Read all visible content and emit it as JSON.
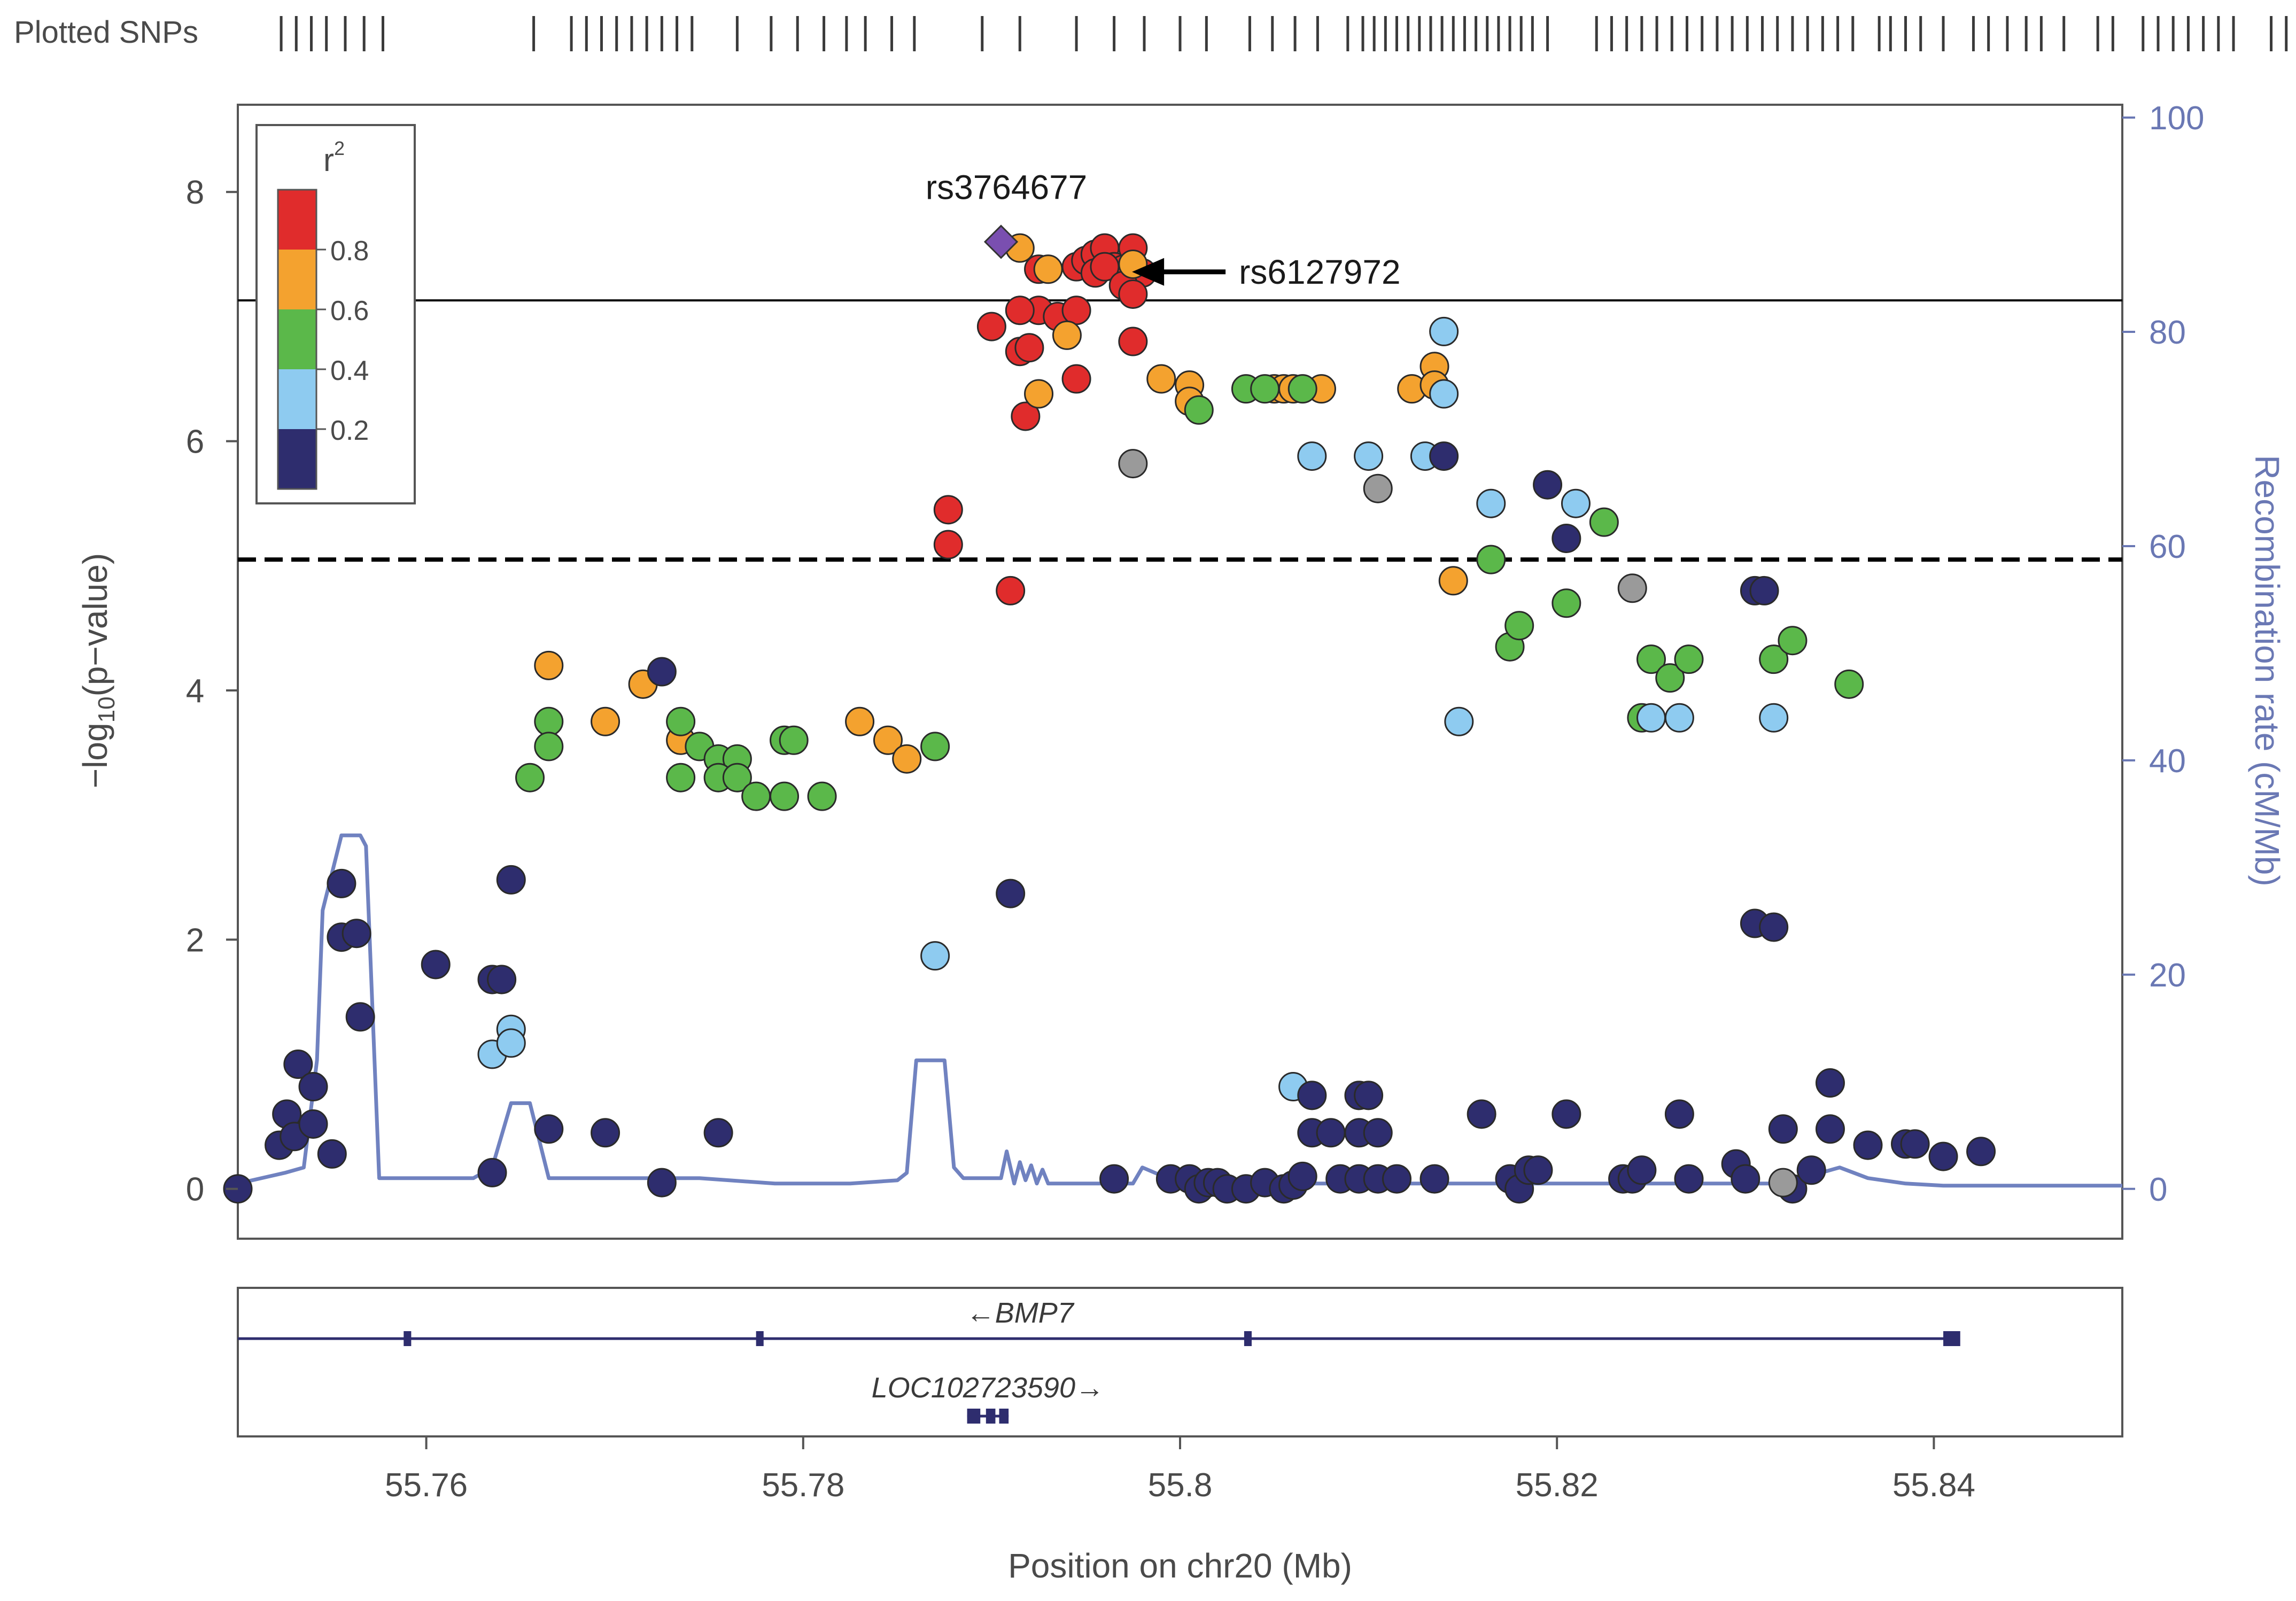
{
  "chart_data": {
    "type": "scatter",
    "title": "",
    "plotted_snps_label": "Plotted SNPs",
    "xlabel": "Position on chr20 (Mb)",
    "ylabel": "-log10(p-value)",
    "ylabel_parts": {
      "pre": "−log",
      "sub": "10",
      "post": "(p−value)"
    },
    "y2label": "Recombination rate (cM/Mb)",
    "xlim": [
      55.75,
      55.85
    ],
    "ylim": [
      -0.4,
      8.7
    ],
    "y2lim": [
      -4.65,
      101.2
    ],
    "x_ticks": [
      55.76,
      55.78,
      55.8,
      55.82,
      55.84
    ],
    "x_tick_labels": [
      "55.76",
      "55.78",
      "55.8",
      "55.82",
      "55.84"
    ],
    "y_ticks": [
      0,
      2,
      4,
      6,
      8
    ],
    "y_tick_labels": [
      "0",
      "2",
      "4",
      "6",
      "8"
    ],
    "y2_ticks": [
      0,
      20,
      40,
      60,
      80,
      100
    ],
    "y2_tick_labels": [
      "0",
      "20",
      "40",
      "60",
      "80",
      "100"
    ],
    "genome_wide_line": 7.13,
    "suggestive_line": 5.05,
    "legend": {
      "title": "r2",
      "bins": [
        {
          "label": "",
          "color": "#2e2d6e"
        },
        {
          "label": "0.2",
          "color": "#8ecbf0"
        },
        {
          "label": "0.4",
          "color": "#5bb84a"
        },
        {
          "label": "0.6",
          "color": "#f4a22f"
        },
        {
          "label": "0.8",
          "color": "#e02c2c"
        }
      ]
    },
    "colors": {
      "r08": "#e02c2c",
      "r06": "#f4a22f",
      "r04": "#5bb84a",
      "r02": "#8ecbf0",
      "r00": "#2e2d6e",
      "na": "#9a9a9a",
      "lead": "#7a4fb0",
      "recomb": "#7082c0",
      "gene": "#2e2d6e"
    },
    "annotations": [
      {
        "label": "rs3764677",
        "x": 55.7905,
        "y": 7.6,
        "type": "lead"
      },
      {
        "label": "rs6127972",
        "x": 55.7966,
        "y": 7.38,
        "type": "arrow"
      }
    ],
    "snp_ticks": [
      55.7523,
      55.7531,
      55.7539,
      55.7547,
      55.7557,
      55.7567,
      55.7577,
      55.7657,
      55.7677,
      55.7685,
      55.7693,
      55.7701,
      55.7709,
      55.7717,
      55.7725,
      55.7733,
      55.7741,
      55.7765,
      55.7783,
      55.7797,
      55.7811,
      55.7823,
      55.7833,
      55.7847,
      55.7859,
      55.7895,
      55.7915,
      55.7945,
      55.7965,
      55.7981,
      55.8,
      55.8014,
      55.8037,
      55.8049,
      55.8061,
      55.8073,
      55.8089,
      55.8097,
      55.8103,
      55.8109,
      55.8115,
      55.8121,
      55.8127,
      55.8133,
      55.8139,
      55.8145,
      55.8151,
      55.8157,
      55.8163,
      55.8169,
      55.8175,
      55.8181,
      55.8187,
      55.8195,
      55.8221,
      55.8229,
      55.8237,
      55.8245,
      55.8253,
      55.8261,
      55.8269,
      55.8277,
      55.8285,
      55.8293,
      55.8301,
      55.8309,
      55.8317,
      55.8325,
      55.8333,
      55.8341,
      55.8349,
      55.8357,
      55.8371,
      55.8377,
      55.8385,
      55.8393,
      55.8405,
      55.8421,
      55.8429,
      55.8439,
      55.8449,
      55.8457,
      55.8469,
      55.8487,
      55.8495,
      55.8511,
      55.8519,
      55.8527,
      55.8535,
      55.8543,
      55.8551,
      55.8559,
      55.8579,
      55.8587,
      55.8595,
      55.8603,
      55.8615,
      55.8635,
      55.8669,
      55.8681,
      55.8693,
      55.8707
    ],
    "recombination": {
      "x": [
        55.75,
        55.7525,
        55.7535,
        55.7542,
        55.7545,
        55.7555,
        55.7565,
        55.7568,
        55.7575,
        55.7605,
        55.7625,
        55.763,
        55.7635,
        55.7645,
        55.765,
        55.7655,
        55.7665,
        55.7705,
        55.7745,
        55.7785,
        55.7825,
        55.785,
        55.7855,
        55.786,
        55.7875,
        55.788,
        55.7885,
        55.7905,
        55.7908,
        55.7912,
        55.7915,
        55.7918,
        55.7921,
        55.7924,
        55.7927,
        55.793,
        55.7945,
        55.7975,
        55.798,
        55.8,
        55.8025,
        55.8045,
        55.8065,
        55.8085,
        55.8105,
        55.8125,
        55.8145,
        55.8165,
        55.8185,
        55.8205,
        55.8225,
        55.8245,
        55.8265,
        55.8285,
        55.8305,
        55.8325,
        55.834,
        55.835,
        55.8365,
        55.8385,
        55.8405,
        55.8425,
        55.8445,
        55.8465,
        55.8485,
        55.85
      ],
      "y": [
        0.5,
        1.5,
        2.0,
        12.0,
        26.0,
        33.0,
        33.0,
        32.0,
        1.0,
        1.0,
        1.0,
        1.5,
        2.0,
        8.0,
        8.0,
        8.0,
        1.0,
        1.0,
        1.0,
        0.5,
        0.5,
        0.8,
        1.5,
        12.0,
        12.0,
        2.0,
        1.0,
        1.0,
        3.5,
        0.5,
        2.5,
        0.8,
        2.2,
        0.5,
        1.8,
        0.5,
        0.5,
        0.5,
        2.0,
        0.5,
        0.5,
        0.5,
        0.5,
        0.5,
        0.5,
        0.5,
        0.5,
        0.5,
        0.5,
        0.5,
        0.5,
        0.5,
        0.5,
        0.5,
        0.5,
        0.5,
        1.5,
        2.0,
        1.0,
        0.5,
        0.3,
        0.3,
        0.3,
        0.3,
        0.3,
        0.3
      ]
    },
    "genes": [
      {
        "name": "BMP7",
        "label": "←BMP7",
        "start": 55.75,
        "end": 55.8412,
        "strand": "-",
        "row": 0,
        "exons": [
          [
            55.7588,
            55.7592
          ],
          [
            55.7775,
            55.7779
          ],
          [
            55.8034,
            55.8038
          ],
          [
            55.8405,
            55.8414
          ]
        ]
      },
      {
        "name": "LOC102723590",
        "label": "LOC102723590→",
        "start": 55.7887,
        "end": 55.7909,
        "strand": "+",
        "row": 1,
        "exons": [
          [
            55.7887,
            55.7894
          ],
          [
            55.7897,
            55.7902
          ],
          [
            55.7904,
            55.7909
          ]
        ]
      }
    ],
    "series": [
      {
        "name": "r2 0.8-1.0",
        "color": "#e02c2c",
        "points": [
          [
            55.7945,
            7.4
          ],
          [
            55.795,
            7.45
          ],
          [
            55.7955,
            7.5
          ],
          [
            55.796,
            7.55
          ],
          [
            55.7965,
            7.4
          ],
          [
            55.797,
            7.38
          ],
          [
            55.7975,
            7.55
          ],
          [
            55.798,
            7.35
          ],
          [
            55.7925,
            7.38
          ],
          [
            55.7955,
            7.35
          ],
          [
            55.796,
            7.4
          ],
          [
            55.797,
            7.25
          ],
          [
            55.7975,
            7.18
          ],
          [
            55.7915,
            6.72
          ],
          [
            55.792,
            6.75
          ],
          [
            55.7925,
            7.05
          ],
          [
            55.7935,
            7.0
          ],
          [
            55.7945,
            7.05
          ],
          [
            55.79,
            6.92
          ],
          [
            55.7915,
            7.05
          ],
          [
            55.7945,
            6.5
          ],
          [
            55.7975,
            6.8
          ],
          [
            55.7918,
            6.2
          ],
          [
            55.7877,
            5.45
          ],
          [
            55.7877,
            5.17
          ],
          [
            55.791,
            4.8
          ]
        ]
      },
      {
        "name": "r2 0.6-0.8",
        "color": "#f4a22f",
        "points": [
          [
            55.7915,
            7.55
          ],
          [
            55.793,
            7.38
          ],
          [
            55.794,
            6.85
          ],
          [
            55.7975,
            7.42
          ],
          [
            55.7925,
            6.38
          ],
          [
            55.799,
            6.5
          ],
          [
            55.8005,
            6.45
          ],
          [
            55.8005,
            6.32
          ],
          [
            55.805,
            6.42
          ],
          [
            55.8055,
            6.42
          ],
          [
            55.806,
            6.42
          ],
          [
            55.8075,
            6.42
          ],
          [
            55.8123,
            6.42
          ],
          [
            55.8135,
            6.6
          ],
          [
            55.8135,
            6.45
          ],
          [
            55.8145,
            4.88
          ],
          [
            55.7665,
            4.2
          ],
          [
            55.7695,
            3.75
          ],
          [
            55.7715,
            4.05
          ],
          [
            55.7735,
            3.6
          ],
          [
            55.783,
            3.75
          ],
          [
            55.7845,
            3.6
          ],
          [
            55.7855,
            3.45
          ]
        ]
      },
      {
        "name": "r2 0.4-0.6",
        "color": "#5bb84a",
        "points": [
          [
            55.7665,
            3.75
          ],
          [
            55.7665,
            3.55
          ],
          [
            55.7655,
            3.3
          ],
          [
            55.7735,
            3.75
          ],
          [
            55.7745,
            3.55
          ],
          [
            55.7755,
            3.45
          ],
          [
            55.7765,
            3.45
          ],
          [
            55.7735,
            3.3
          ],
          [
            55.7755,
            3.3
          ],
          [
            55.7765,
            3.3
          ],
          [
            55.7775,
            3.15
          ],
          [
            55.779,
            3.6
          ],
          [
            55.7795,
            3.6
          ],
          [
            55.779,
            3.15
          ],
          [
            55.781,
            3.15
          ],
          [
            55.787,
            3.55
          ],
          [
            55.8035,
            6.42
          ],
          [
            55.8045,
            6.42
          ],
          [
            55.8065,
            6.42
          ],
          [
            55.801,
            6.25
          ],
          [
            55.8165,
            5.05
          ],
          [
            55.8175,
            4.35
          ],
          [
            55.818,
            4.52
          ],
          [
            55.8205,
            4.7
          ],
          [
            55.8225,
            5.35
          ],
          [
            55.8245,
            3.78
          ],
          [
            55.825,
            4.25
          ],
          [
            55.826,
            4.1
          ],
          [
            55.827,
            4.25
          ],
          [
            55.8315,
            4.25
          ],
          [
            55.8325,
            4.4
          ],
          [
            55.8355,
            4.05
          ]
        ]
      },
      {
        "name": "r2 0.2-0.4",
        "color": "#8ecbf0",
        "points": [
          [
            55.814,
            6.88
          ],
          [
            55.807,
            5.88
          ],
          [
            55.81,
            5.88
          ],
          [
            55.813,
            5.88
          ],
          [
            55.814,
            6.38
          ],
          [
            55.8165,
            5.5
          ],
          [
            55.821,
            5.5
          ],
          [
            55.8148,
            3.75
          ],
          [
            55.8265,
            3.78
          ],
          [
            55.825,
            3.78
          ],
          [
            55.8315,
            3.78
          ],
          [
            55.787,
            1.87
          ],
          [
            55.7645,
            1.28
          ],
          [
            55.7635,
            1.08
          ],
          [
            55.7645,
            1.17
          ],
          [
            55.806,
            0.82
          ]
        ]
      },
      {
        "name": "r2 0.0-0.2",
        "color": "#2e2d6e",
        "points": [
          [
            55.7725,
            4.15
          ],
          [
            55.7555,
            2.45
          ],
          [
            55.7555,
            2.02
          ],
          [
            55.7565,
            1.38
          ],
          [
            55.7605,
            1.8
          ],
          [
            55.7635,
            1.68
          ],
          [
            55.7645,
            2.48
          ],
          [
            55.764,
            1.68
          ],
          [
            55.791,
            2.37
          ],
          [
            55.814,
            5.88
          ],
          [
            55.8195,
            5.65
          ],
          [
            55.8205,
            5.22
          ],
          [
            55.8305,
            4.8
          ],
          [
            55.831,
            4.8
          ],
          [
            55.8305,
            2.13
          ],
          [
            55.8315,
            2.1
          ],
          [
            55.75,
            0.0
          ],
          [
            55.7522,
            0.35
          ],
          [
            55.7526,
            0.6
          ],
          [
            55.753,
            0.42
          ],
          [
            55.7532,
            1.0
          ],
          [
            55.754,
            0.82
          ],
          [
            55.754,
            0.52
          ],
          [
            55.755,
            0.28
          ],
          [
            55.7635,
            0.13
          ],
          [
            55.7665,
            0.48
          ],
          [
            55.7695,
            0.45
          ],
          [
            55.7725,
            0.05
          ],
          [
            55.7755,
            0.45
          ],
          [
            55.7965,
            0.08
          ],
          [
            55.7995,
            0.08
          ],
          [
            55.8005,
            0.08
          ],
          [
            55.801,
            0.0
          ],
          [
            55.8015,
            0.05
          ],
          [
            55.802,
            0.05
          ],
          [
            55.8025,
            0.0
          ],
          [
            55.8035,
            0.0
          ],
          [
            55.8045,
            0.05
          ],
          [
            55.8055,
            0.0
          ],
          [
            55.806,
            0.03
          ],
          [
            55.8065,
            0.1
          ],
          [
            55.807,
            0.45
          ],
          [
            55.807,
            0.75
          ],
          [
            55.808,
            0.45
          ],
          [
            55.8085,
            0.08
          ],
          [
            55.8095,
            0.75
          ],
          [
            55.8095,
            0.45
          ],
          [
            55.8095,
            0.08
          ],
          [
            55.81,
            0.75
          ],
          [
            55.8105,
            0.08
          ],
          [
            55.8105,
            0.45
          ],
          [
            55.8115,
            0.08
          ],
          [
            55.8135,
            0.08
          ],
          [
            55.816,
            0.6
          ],
          [
            55.8175,
            0.08
          ],
          [
            55.818,
            0.0
          ],
          [
            55.8185,
            0.15
          ],
          [
            55.819,
            0.15
          ],
          [
            55.8205,
            0.6
          ],
          [
            55.8235,
            0.08
          ],
          [
            55.824,
            0.08
          ],
          [
            55.8245,
            0.15
          ],
          [
            55.8265,
            0.6
          ],
          [
            55.827,
            0.08
          ],
          [
            55.8295,
            0.2
          ],
          [
            55.83,
            0.08
          ],
          [
            55.832,
            0.48
          ],
          [
            55.8325,
            0.0
          ],
          [
            55.8335,
            0.15
          ],
          [
            55.8345,
            0.48
          ],
          [
            55.8345,
            0.85
          ],
          [
            55.8365,
            0.35
          ],
          [
            55.8385,
            0.36
          ],
          [
            55.839,
            0.36
          ],
          [
            55.8405,
            0.26
          ],
          [
            55.8425,
            0.3
          ],
          [
            55.7563,
            2.05
          ]
        ]
      },
      {
        "name": "r2 NA",
        "color": "#9a9a9a",
        "points": [
          [
            55.7975,
            5.82
          ],
          [
            55.8105,
            5.62
          ],
          [
            55.824,
            4.82
          ],
          [
            55.832,
            0.05
          ]
        ]
      },
      {
        "name": "lead SNP",
        "color": "#7a4fb0",
        "shape": "diamond",
        "points": [
          [
            55.7905,
            7.6
          ]
        ]
      }
    ]
  }
}
